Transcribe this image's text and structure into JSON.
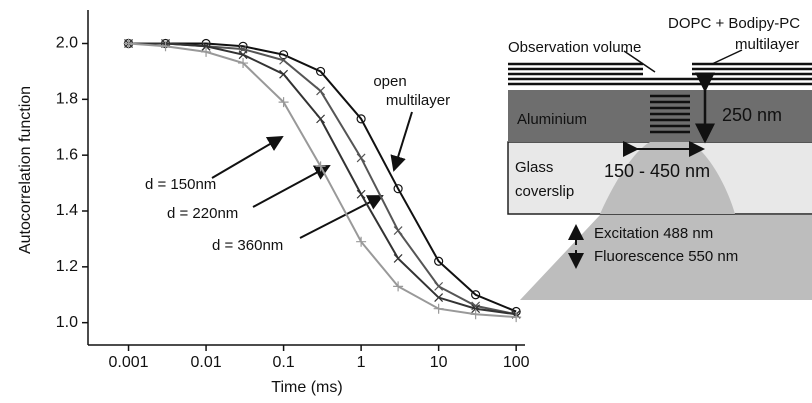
{
  "chart_data": {
    "type": "line",
    "xlabel": "Time (ms)",
    "ylabel": "Autocorrelation function",
    "xscale": "log",
    "xlim": [
      0.0003,
      130
    ],
    "ylim": [
      0.92,
      2.12
    ],
    "xticks": [
      0.001,
      0.01,
      0.1,
      1,
      10,
      100
    ],
    "yticks": [
      {
        "value": 1,
        "label": "1.0"
      },
      1.2,
      1.4,
      1.6,
      1.8,
      {
        "value": 2,
        "label": "2.0"
      }
    ],
    "x": [
      0.001,
      0.003,
      0.01,
      0.03,
      0.1,
      0.3,
      1,
      3,
      10,
      30,
      100
    ],
    "series": [
      {
        "color": "#111111",
        "marker": "circle",
        "values": [
          2.0,
          2.0,
          2.0,
          1.99,
          1.96,
          1.9,
          1.73,
          1.48,
          1.22,
          1.1,
          1.04
        ]
      },
      {
        "color": "#555555",
        "marker": "x",
        "values": [
          2.0,
          2.0,
          1.99,
          1.98,
          1.94,
          1.83,
          1.59,
          1.33,
          1.13,
          1.06,
          1.03
        ]
      },
      {
        "color": "#333333",
        "marker": "x",
        "values": [
          2.0,
          2.0,
          1.99,
          1.96,
          1.89,
          1.73,
          1.46,
          1.23,
          1.09,
          1.05,
          1.03
        ]
      },
      {
        "color": "#999999",
        "marker": "plus",
        "values": [
          2.0,
          1.99,
          1.97,
          1.93,
          1.79,
          1.56,
          1.29,
          1.13,
          1.05,
          1.03,
          1.02
        ]
      }
    ],
    "annotations": [
      "open",
      "multilayer",
      "d = 150nm",
      "d = 220nm",
      "d = 360nm"
    ]
  },
  "diagram": {
    "labels": [
      "DOPC + Bodipy-PC",
      "multilayer",
      "Observation volume",
      "Aluminium",
      "250 nm",
      "Glass",
      "coverslip",
      "150 - 450 nm",
      "Excitation 488 nm",
      "Fluorescence 550 nm"
    ]
  }
}
